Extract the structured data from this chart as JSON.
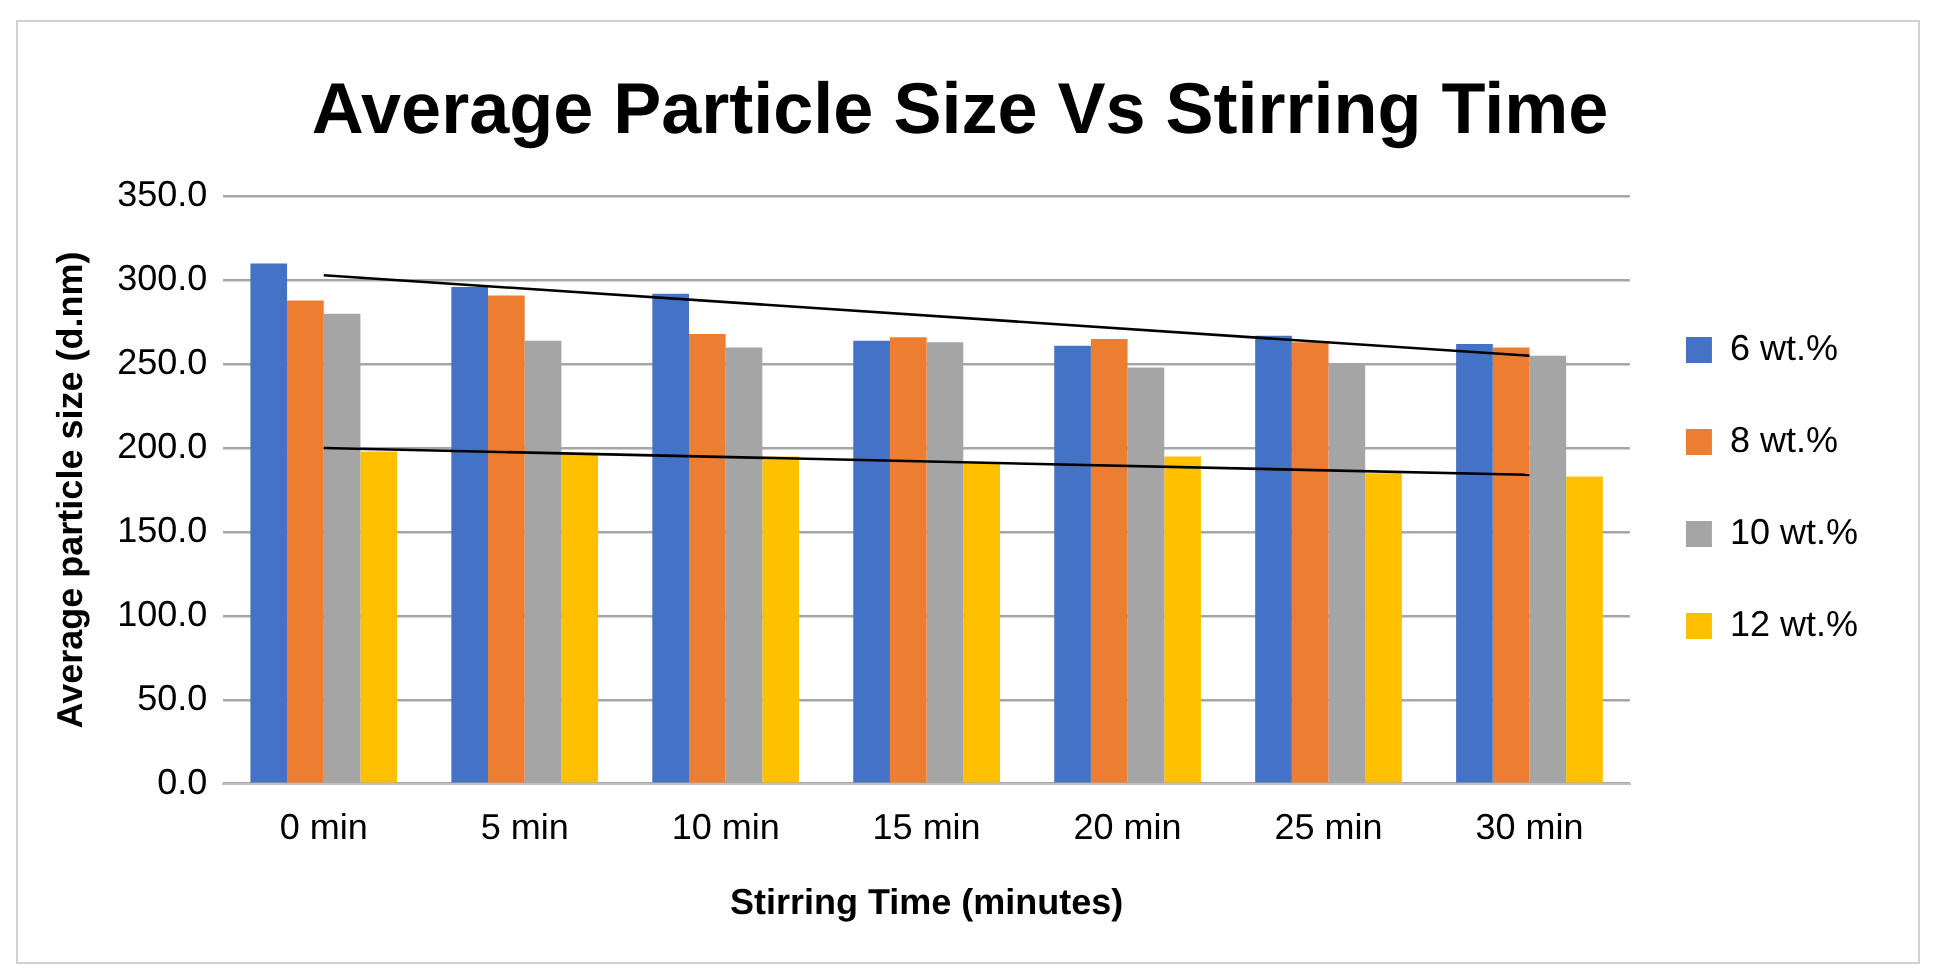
{
  "chart_data": {
    "type": "bar",
    "title": "Average Particle Size Vs Stirring Time",
    "xlabel": "Stirring Time (minutes)",
    "ylabel": "Average particle size (d.nm)",
    "categories": [
      "0 min",
      "5 min",
      "10 min",
      "15 min",
      "20 min",
      "25 min",
      "30 min"
    ],
    "series": [
      {
        "name": "6 wt.%",
        "color": "#4472c4",
        "values": [
          310,
          296,
          292,
          264,
          261,
          267,
          262
        ]
      },
      {
        "name": "8 wt.%",
        "color": "#ed7d31",
        "values": [
          288,
          291,
          268,
          266,
          265,
          263,
          260
        ]
      },
      {
        "name": "10 wt.%",
        "color": "#a5a5a5",
        "values": [
          280,
          264,
          260,
          263,
          248,
          250,
          255
        ]
      },
      {
        "name": "12 wt.%",
        "color": "#ffc000",
        "values": [
          198,
          197,
          195,
          191,
          195,
          185,
          183
        ]
      },
      {
        "type": "line",
        "color": "#000000",
        "x": [
          "0 min",
          "30 min"
        ],
        "values": [
          303,
          255
        ],
        "marker": "none"
      },
      {
        "type": "line",
        "color": "#000000",
        "x": [
          "0 min",
          "30 min"
        ],
        "values": [
          200,
          184
        ],
        "marker": "none"
      }
    ],
    "ylim": [
      0,
      350
    ],
    "yticks": [
      {
        "value": 0,
        "label": "0.0"
      },
      {
        "value": 50,
        "label": "50.0"
      },
      {
        "value": 100,
        "label": "100.0"
      },
      {
        "value": 150,
        "label": "150.0"
      },
      {
        "value": 200,
        "label": "200.0"
      },
      {
        "value": 250,
        "label": "250.0"
      },
      {
        "value": 300,
        "label": "300.0"
      },
      {
        "value": 350,
        "label": "350.0"
      }
    ],
    "grid": "y",
    "legend": "right"
  }
}
